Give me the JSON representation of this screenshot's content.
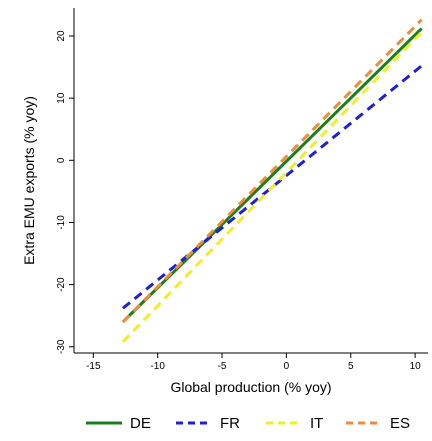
{
  "chart_data": {
    "type": "line",
    "title": "",
    "xlabel": "Global production (% yoy)",
    "ylabel": "Extra EMU exports (% yoy)",
    "xlim": [
      -16.5,
      11
    ],
    "ylim": [
      -31,
      24.5
    ],
    "xticks": [
      -15,
      -10,
      -5,
      0,
      5,
      10
    ],
    "yticks": [
      -30,
      -20,
      -10,
      0,
      10,
      20
    ],
    "xtick_labels": [
      "-15",
      "-10",
      "-5",
      "0",
      "5",
      "10"
    ],
    "ytick_labels": [
      "-30",
      "-20",
      "-10",
      "0",
      "10",
      "20"
    ],
    "grid": false,
    "legend_position": "bottom",
    "series": [
      {
        "name": "DE",
        "x": [
          -12.7,
          10.5
        ],
        "y": [
          -26.0,
          21.2
        ],
        "color": "#1a7f1a",
        "style": "solid"
      },
      {
        "name": "FR",
        "x": [
          -12.7,
          10.5
        ],
        "y": [
          -23.8,
          15.2
        ],
        "color": "#1f1fd6",
        "style": "dashed"
      },
      {
        "name": "IT",
        "x": [
          -12.7,
          10.5
        ],
        "y": [
          -29.2,
          20.6
        ],
        "color": "#f0ee2a",
        "style": "dashed"
      },
      {
        "name": "ES",
        "x": [
          -12.7,
          10.5
        ],
        "y": [
          -26.0,
          22.6
        ],
        "color": "#f08a3c",
        "style": "dashed"
      }
    ]
  }
}
